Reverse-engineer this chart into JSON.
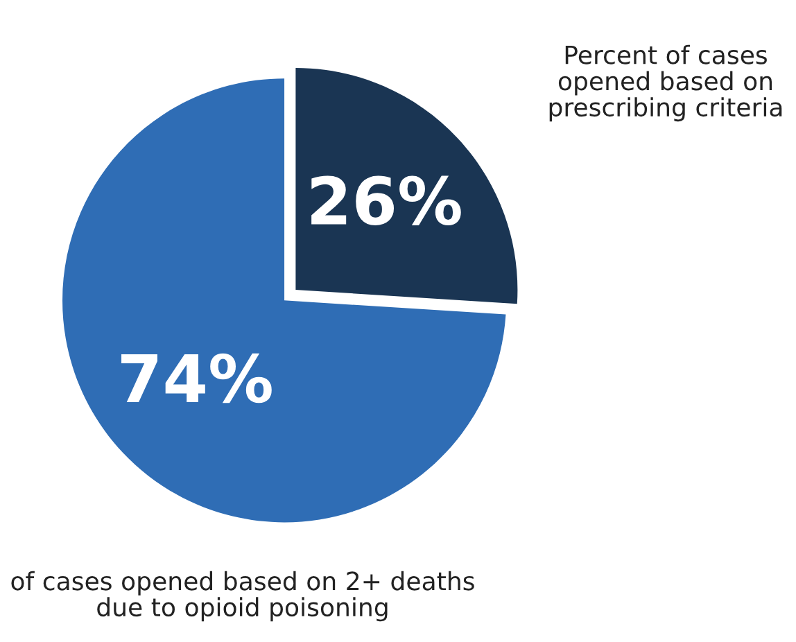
{
  "chart_data": {
    "type": "pie",
    "categories": [
      "Percent of cases opened based on prescribing criteria",
      "of cases opened based on 2+ deaths due to opioid poisoning"
    ],
    "values": [
      26,
      74
    ],
    "colors": [
      "#1a3553",
      "#2f6db5"
    ],
    "value_labels": [
      "26%",
      "74%"
    ],
    "legend": false
  }
}
